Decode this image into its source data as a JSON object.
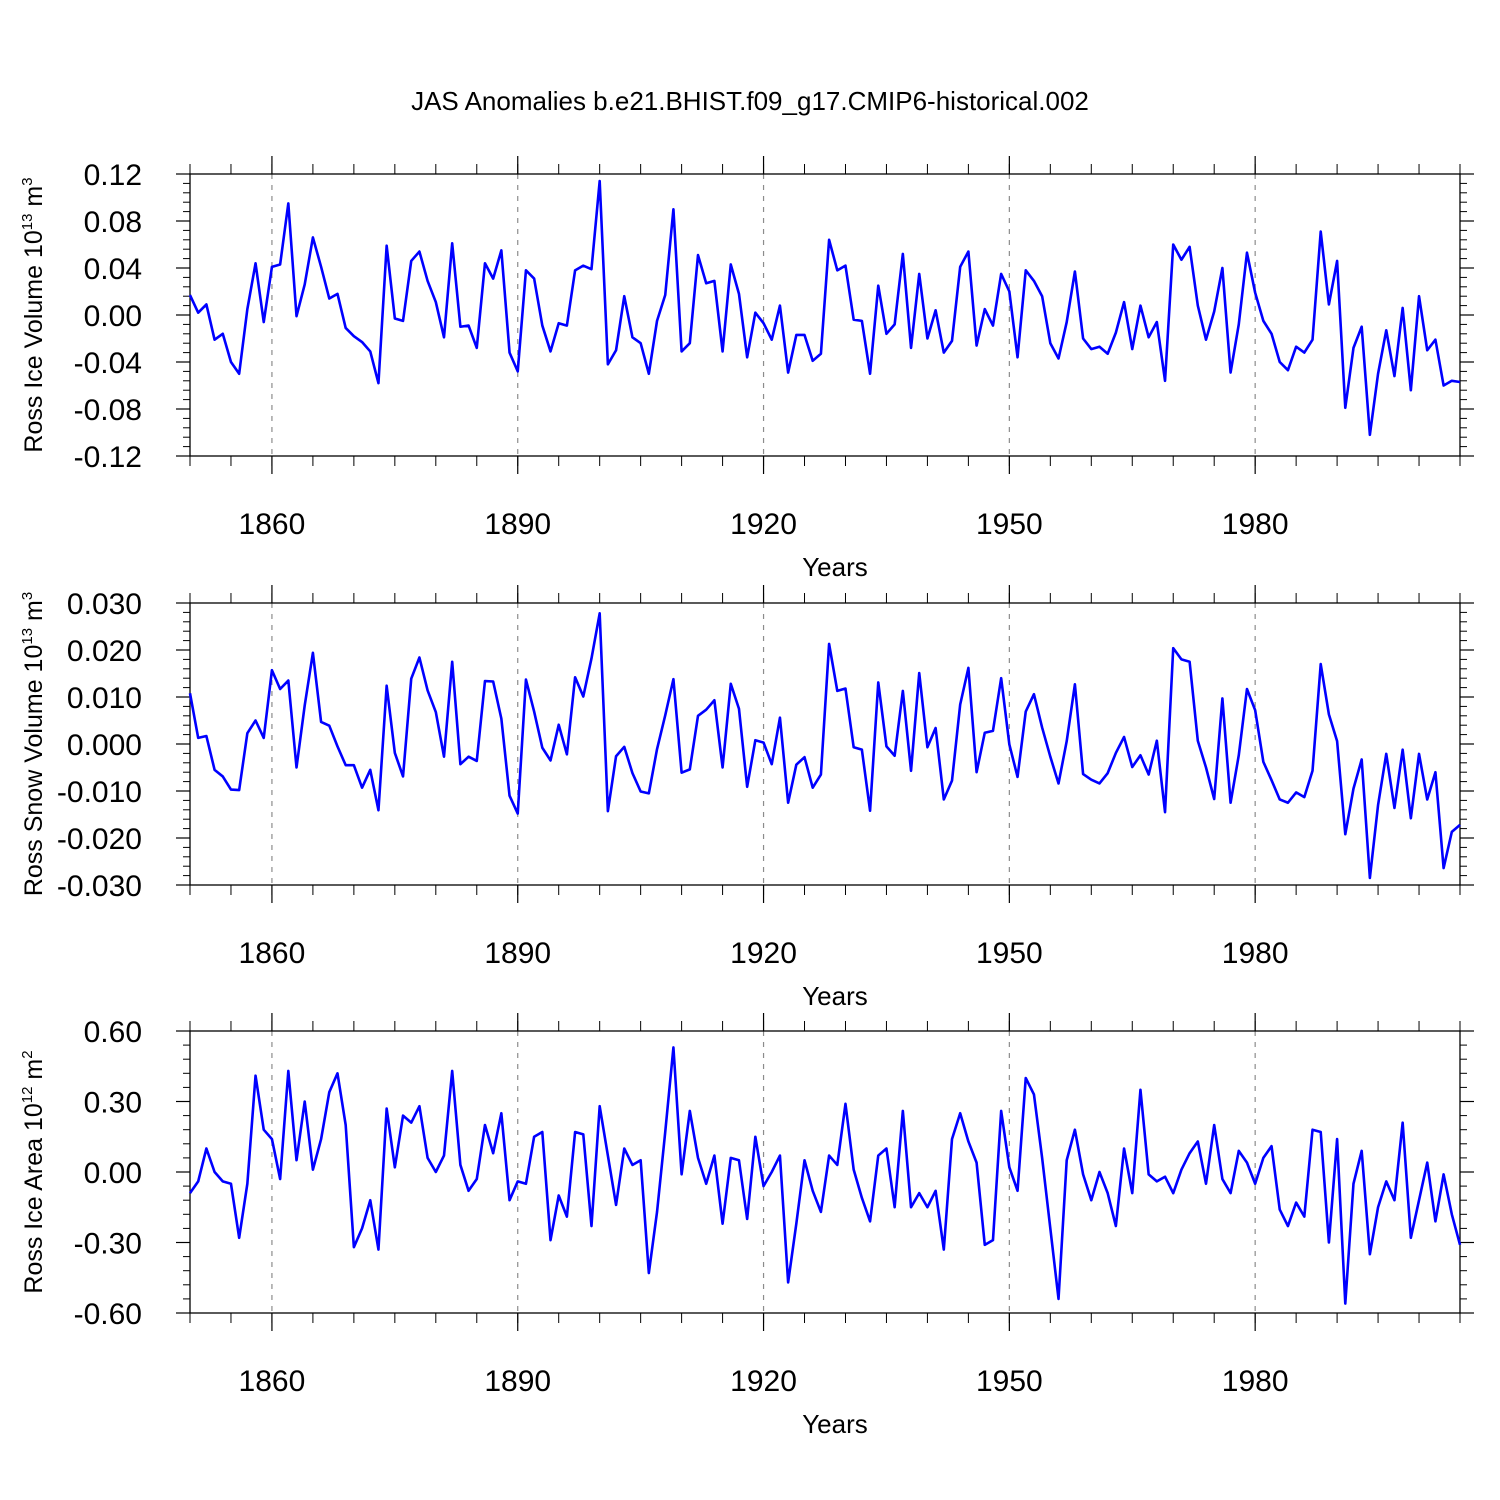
{
  "title": "JAS Anomalies b.e21.BHIST.f09_g17.CMIP6-historical.002",
  "colors": {
    "line": "#0000ff",
    "axis": "#000000",
    "grid": "#8c8c8c",
    "background": "#ffffff"
  },
  "chart_data": [
    {
      "type": "line",
      "ylabel": {
        "main": "Ross Ice Volume 10",
        "exp": "13",
        "unit": "m",
        "unit_exp": "3"
      },
      "xlabel": "Years",
      "xlim": [
        1850,
        2005
      ],
      "ylim": [
        -0.12,
        0.12
      ],
      "yticks": [
        -0.12,
        -0.08,
        -0.04,
        0.0,
        0.04,
        0.08,
        0.12
      ],
      "ytick_labels": [
        "-0.12",
        "-0.08",
        "-0.04",
        "0.00",
        "0.04",
        "0.08",
        "0.12"
      ],
      "xticks": [
        1860,
        1890,
        1920,
        1950,
        1980
      ],
      "xtick_labels": [
        "1860",
        "1890",
        "1920",
        "1950",
        "1980"
      ],
      "grid": "vertical dashed at major x ticks",
      "series": [
        {
          "x_start": 1850,
          "values": [
            0.017,
            0.002,
            0.009,
            -0.021,
            -0.016,
            -0.04,
            -0.05,
            0.005,
            0.044,
            -0.006,
            0.041,
            0.043,
            0.095,
            -0.001,
            0.026,
            0.066,
            0.041,
            0.014,
            0.018,
            -0.011,
            -0.018,
            -0.023,
            -0.031,
            -0.058,
            0.059,
            -0.003,
            -0.005,
            0.046,
            0.054,
            0.029,
            0.011,
            -0.019,
            0.061,
            -0.01,
            -0.009,
            -0.028,
            0.044,
            0.031,
            0.055,
            -0.032,
            -0.048,
            0.038,
            0.031,
            -0.009,
            -0.031,
            -0.007,
            -0.009,
            0.038,
            0.042,
            0.039,
            0.114,
            -0.042,
            -0.03,
            0.016,
            -0.019,
            -0.024,
            -0.05,
            -0.005,
            0.017,
            0.09,
            -0.031,
            -0.024,
            0.051,
            0.027,
            0.029,
            -0.031,
            0.043,
            0.018,
            -0.036,
            0.002,
            -0.007,
            -0.021,
            0.008,
            -0.049,
            -0.017,
            -0.017,
            -0.039,
            -0.033,
            0.064,
            0.038,
            0.042,
            -0.004,
            -0.005,
            -0.05,
            0.025,
            -0.016,
            -0.008,
            0.052,
            -0.028,
            0.035,
            -0.02,
            0.004,
            -0.032,
            -0.022,
            0.041,
            0.054,
            -0.026,
            0.005,
            -0.009,
            0.035,
            0.02,
            -0.036,
            0.038,
            0.029,
            0.016,
            -0.024,
            -0.037,
            -0.006,
            0.037,
            -0.02,
            -0.029,
            -0.027,
            -0.033,
            -0.015,
            0.011,
            -0.029,
            0.008,
            -0.019,
            -0.006,
            -0.056,
            0.06,
            0.047,
            0.058,
            0.008,
            -0.021,
            0.003,
            0.04,
            -0.049,
            -0.008,
            0.053,
            0.019,
            -0.005,
            -0.016,
            -0.04,
            -0.047,
            -0.027,
            -0.032,
            -0.021,
            0.071,
            0.009,
            0.046,
            -0.079,
            -0.028,
            -0.01,
            -0.102,
            -0.05,
            -0.013,
            -0.052,
            0.006,
            -0.064,
            0.016,
            -0.03,
            -0.021,
            -0.06,
            -0.056,
            -0.057
          ]
        }
      ]
    },
    {
      "type": "line",
      "ylabel": {
        "main": "Ross Snow Volume 10",
        "exp": "13",
        "unit": "m",
        "unit_exp": "3"
      },
      "xlabel": "Years",
      "xlim": [
        1850,
        2005
      ],
      "ylim": [
        -0.03,
        0.03
      ],
      "yticks": [
        -0.03,
        -0.02,
        -0.01,
        0.0,
        0.01,
        0.02,
        0.03
      ],
      "ytick_labels": [
        "-0.030",
        "-0.020",
        "-0.010",
        "0.000",
        "0.010",
        "0.020",
        "0.030"
      ],
      "xticks": [
        1860,
        1890,
        1920,
        1950,
        1980
      ],
      "xtick_labels": [
        "1860",
        "1890",
        "1920",
        "1950",
        "1980"
      ],
      "grid": "vertical dashed at major x ticks",
      "series": [
        {
          "x_start": 1850,
          "values": [
            0.0108,
            0.0013,
            0.0017,
            -0.0055,
            -0.0069,
            -0.0097,
            -0.0098,
            0.0023,
            0.005,
            0.0013,
            0.0157,
            0.0117,
            0.0135,
            -0.005,
            0.0082,
            0.0194,
            0.0047,
            0.0039,
            -0.0005,
            -0.0045,
            -0.0045,
            -0.0093,
            -0.0055,
            -0.0141,
            0.0124,
            -0.0019,
            -0.0069,
            0.0139,
            0.0184,
            0.0114,
            0.0068,
            -0.0027,
            0.0175,
            -0.0043,
            -0.0027,
            -0.0036,
            0.0134,
            0.0133,
            0.0054,
            -0.011,
            -0.0148,
            0.0137,
            0.0069,
            -0.0008,
            -0.0035,
            0.0041,
            -0.0022,
            0.0142,
            0.0101,
            0.0182,
            0.0278,
            -0.0143,
            -0.0026,
            -0.0006,
            -0.0062,
            -0.0101,
            -0.0105,
            -0.0011,
            0.0061,
            0.0138,
            -0.0061,
            -0.0054,
            0.006,
            0.0073,
            0.0093,
            -0.005,
            0.0128,
            0.0075,
            -0.0091,
            0.0008,
            0.0003,
            -0.0043,
            0.0056,
            -0.0125,
            -0.0044,
            -0.0028,
            -0.0093,
            -0.0065,
            0.0213,
            0.0113,
            0.0118,
            -0.0007,
            -0.0012,
            -0.0142,
            0.0131,
            -0.0005,
            -0.0025,
            0.0113,
            -0.0057,
            0.0151,
            -0.0007,
            0.0034,
            -0.0118,
            -0.0078,
            0.0084,
            0.0162,
            -0.006,
            0.0024,
            0.0028,
            0.014,
            -0.0001,
            -0.007,
            0.0069,
            0.0106,
            0.0035,
            -0.0027,
            -0.0084,
            0.0006,
            0.0127,
            -0.0064,
            -0.0076,
            -0.0084,
            -0.0062,
            -0.0019,
            0.0015,
            -0.0049,
            -0.0024,
            -0.0065,
            0.0007,
            -0.0145,
            0.0204,
            0.018,
            0.0175,
            0.0007,
            -0.005,
            -0.0117,
            0.0097,
            -0.0125,
            -0.0024,
            0.0117,
            0.0072,
            -0.0038,
            -0.0077,
            -0.0118,
            -0.0125,
            -0.0103,
            -0.0113,
            -0.0057,
            0.017,
            0.0063,
            0.0006,
            -0.0192,
            -0.0095,
            -0.0033,
            -0.0285,
            -0.013,
            -0.0021,
            -0.0136,
            -0.0012,
            -0.0158,
            -0.0021,
            -0.0118,
            -0.006,
            -0.0264,
            -0.0187,
            -0.0172
          ]
        }
      ]
    },
    {
      "type": "line",
      "ylabel": {
        "main": "Ross Ice Area 10",
        "exp": "12",
        "unit": "m",
        "unit_exp": "2"
      },
      "xlabel": "Years",
      "xlim": [
        1850,
        2005
      ],
      "ylim": [
        -0.6,
        0.6
      ],
      "yticks": [
        -0.6,
        -0.3,
        0.0,
        0.3,
        0.6
      ],
      "ytick_labels": [
        "-0.60",
        "-0.30",
        "0.00",
        "0.30",
        "0.60"
      ],
      "xticks": [
        1860,
        1890,
        1920,
        1950,
        1980
      ],
      "xtick_labels": [
        "1860",
        "1890",
        "1920",
        "1950",
        "1980"
      ],
      "grid": "vertical dashed at major x ticks",
      "series": [
        {
          "x_start": 1850,
          "values": [
            -0.09,
            -0.04,
            0.1,
            0.0,
            -0.04,
            -0.05,
            -0.28,
            -0.05,
            0.41,
            0.18,
            0.14,
            -0.03,
            0.43,
            0.05,
            0.3,
            0.01,
            0.14,
            0.34,
            0.42,
            0.2,
            -0.32,
            -0.24,
            -0.12,
            -0.33,
            0.27,
            0.02,
            0.24,
            0.21,
            0.28,
            0.06,
            0.0,
            0.07,
            0.43,
            0.03,
            -0.08,
            -0.03,
            0.2,
            0.08,
            0.25,
            -0.12,
            -0.04,
            -0.05,
            0.15,
            0.17,
            -0.29,
            -0.1,
            -0.19,
            0.17,
            0.16,
            -0.23,
            0.28,
            0.07,
            -0.14,
            0.1,
            0.03,
            0.05,
            -0.43,
            -0.17,
            0.17,
            0.53,
            -0.01,
            0.26,
            0.06,
            -0.05,
            0.07,
            -0.22,
            0.06,
            0.05,
            -0.2,
            0.15,
            -0.06,
            0.0,
            0.07,
            -0.47,
            -0.22,
            0.05,
            -0.08,
            -0.17,
            0.07,
            0.03,
            0.29,
            0.01,
            -0.11,
            -0.21,
            0.07,
            0.1,
            -0.15,
            0.26,
            -0.15,
            -0.09,
            -0.15,
            -0.08,
            -0.33,
            0.14,
            0.25,
            0.13,
            0.04,
            -0.31,
            -0.29,
            0.26,
            0.02,
            -0.08,
            0.4,
            0.33,
            0.06,
            -0.24,
            -0.54,
            0.05,
            0.18,
            -0.01,
            -0.12,
            0.0,
            -0.09,
            -0.23,
            0.1,
            -0.09,
            0.35,
            -0.01,
            -0.04,
            -0.02,
            -0.09,
            0.01,
            0.08,
            0.13,
            -0.05,
            0.2,
            -0.03,
            -0.09,
            0.09,
            0.04,
            -0.05,
            0.06,
            0.11,
            -0.16,
            -0.23,
            -0.13,
            -0.19,
            0.18,
            0.17,
            -0.3,
            0.14,
            -0.56,
            -0.05,
            0.09,
            -0.35,
            -0.15,
            -0.04,
            -0.12,
            0.21,
            -0.28,
            -0.12,
            0.04,
            -0.21,
            -0.01,
            -0.18,
            -0.31
          ]
        }
      ]
    }
  ]
}
